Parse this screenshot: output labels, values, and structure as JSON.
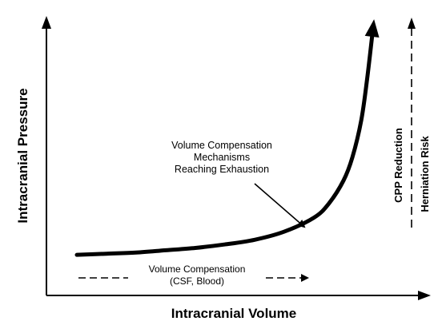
{
  "chart_data": {
    "type": "line",
    "title": "",
    "xlabel": "Intracranial Volume",
    "ylabel": "Intracranial Pressure",
    "grid": false,
    "legend": "none",
    "series": [
      {
        "x": [
          0,
          0.1,
          0.2,
          0.3,
          0.4,
          0.5,
          0.6,
          0.7,
          0.8,
          0.85,
          0.9,
          0.93,
          0.96,
          0.98,
          1.0
        ],
        "y": [
          0.02,
          0.025,
          0.03,
          0.04,
          0.05,
          0.065,
          0.085,
          0.12,
          0.18,
          0.24,
          0.34,
          0.44,
          0.6,
          0.78,
          1.0
        ]
      }
    ],
    "annotations": {
      "exhaustion": [
        "Volume Compensation",
        "Mechanisms",
        "Reaching Exhaustion"
      ],
      "compensation": [
        "Volume Compensation",
        "(CSF, Blood)"
      ],
      "right_1": "CPP Reduction",
      "right_2": "Herniation Risk"
    },
    "line_color": "#000000"
  }
}
